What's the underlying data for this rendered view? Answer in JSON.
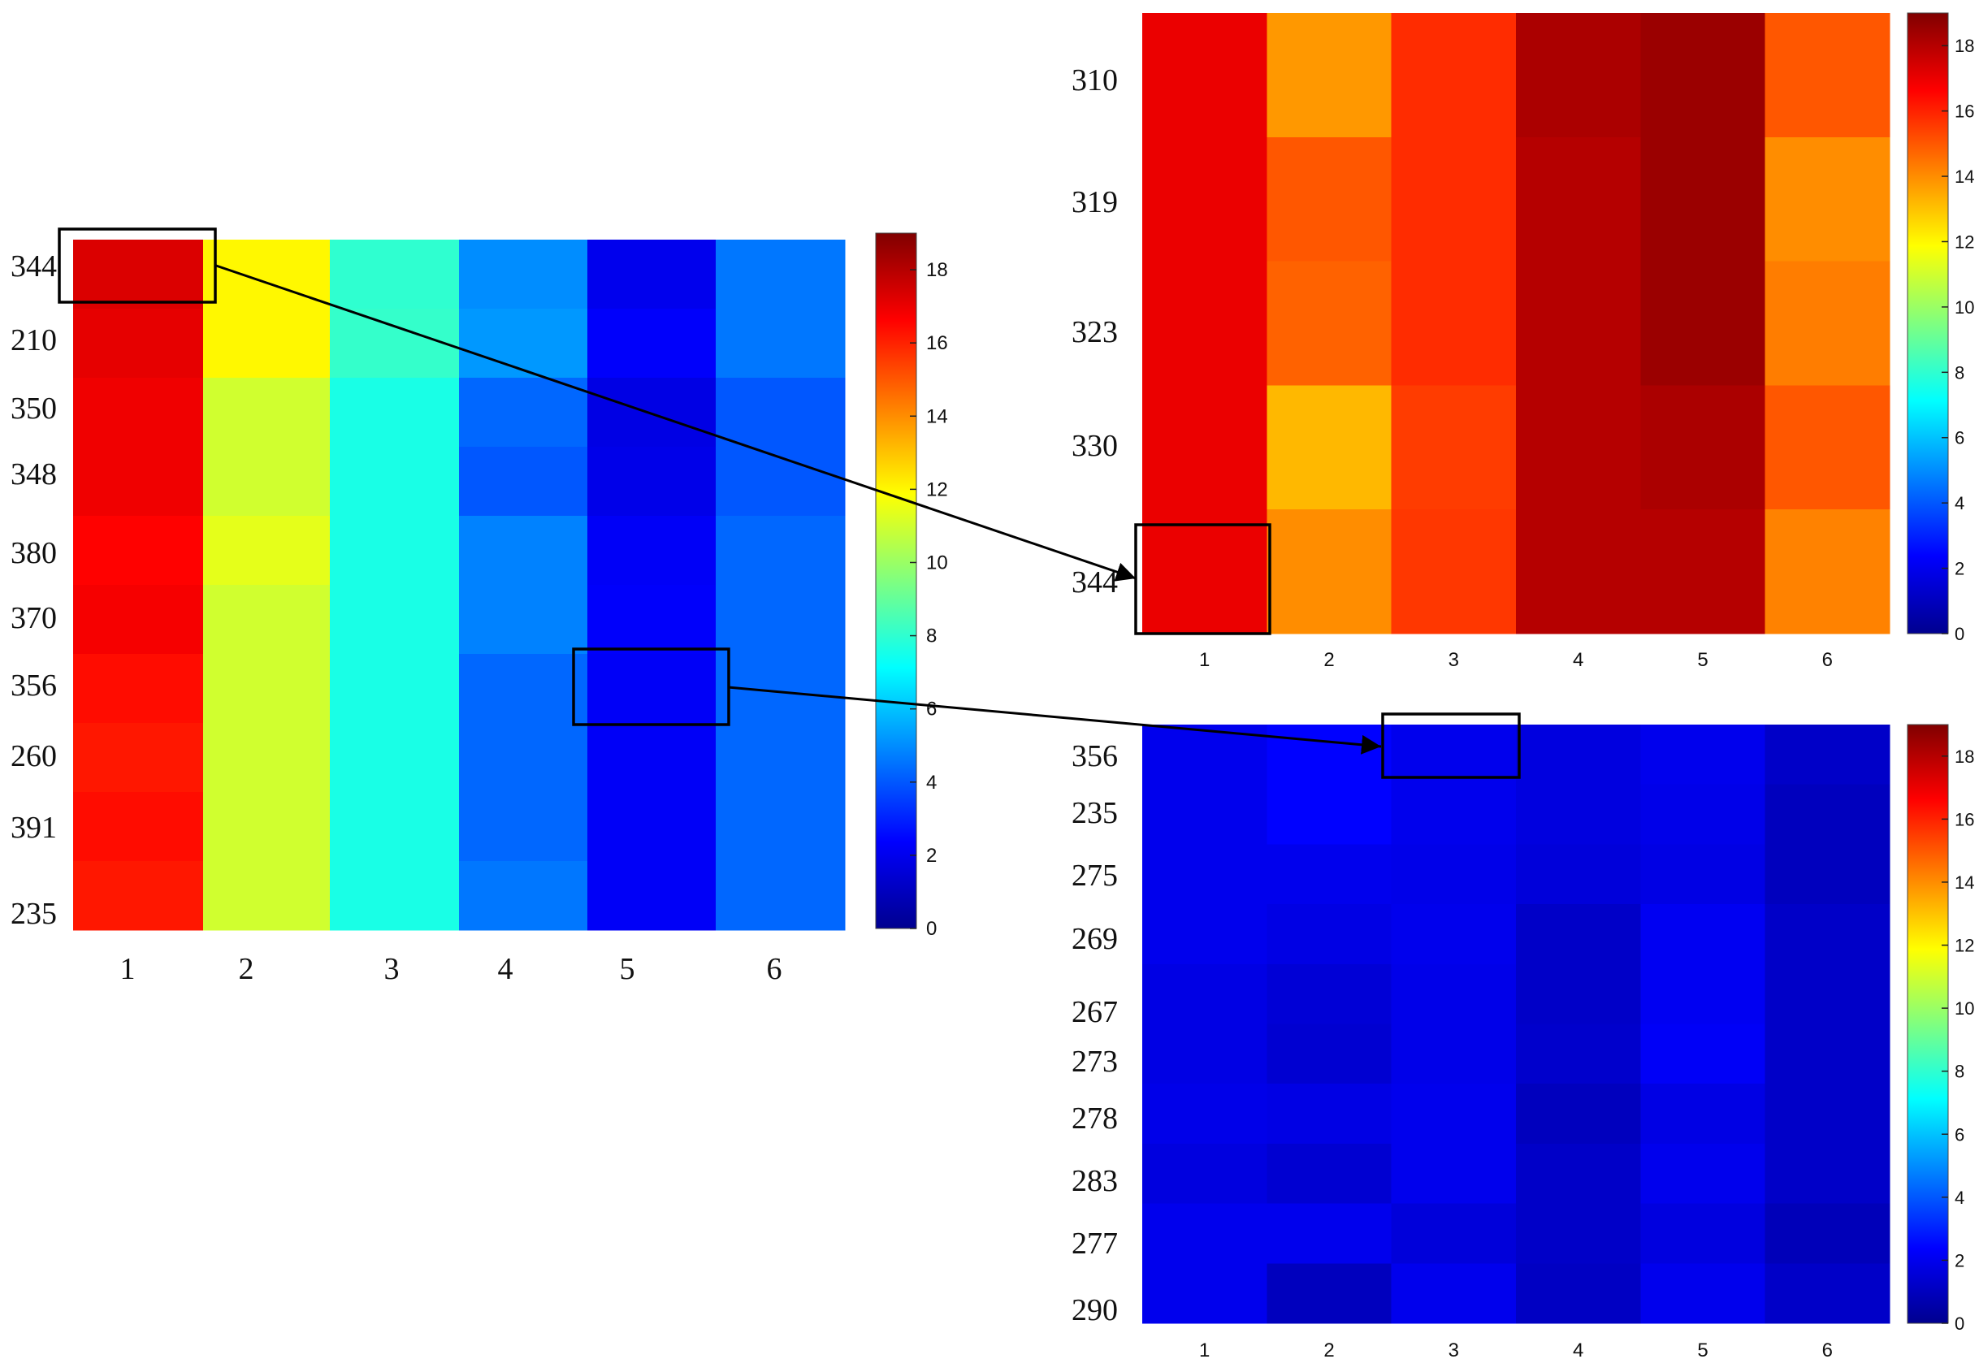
{
  "chart_data": [
    {
      "type": "heatmap",
      "name": "overview",
      "x": [
        "1",
        "2",
        "3",
        "4",
        "5",
        "6"
      ],
      "y": [
        "344",
        "210",
        "350",
        "348",
        "380",
        "370",
        "356",
        "260",
        "391",
        "235"
      ],
      "colorbar": {
        "min": 0,
        "max": 19,
        "ticks": [
          "0",
          "2",
          "4",
          "6",
          "8",
          "10",
          "12",
          "14",
          "16",
          "18"
        ],
        "colormap": "jet"
      },
      "values": [
        [
          17.3,
          12.0,
          8.0,
          5.0,
          2.0,
          4.6
        ],
        [
          17.1,
          12.0,
          8.1,
          5.2,
          2.3,
          4.6
        ],
        [
          16.9,
          11.0,
          7.6,
          4.3,
          1.8,
          4.0
        ],
        [
          16.9,
          11.0,
          7.6,
          4.0,
          1.9,
          4.0
        ],
        [
          16.6,
          11.4,
          7.6,
          4.8,
          2.2,
          4.3
        ],
        [
          16.8,
          11.0,
          7.6,
          4.8,
          2.3,
          4.3
        ],
        [
          16.4,
          11.0,
          7.6,
          4.3,
          2.2,
          4.3
        ],
        [
          16.2,
          11.0,
          7.6,
          4.3,
          2.2,
          4.3
        ],
        [
          16.4,
          11.0,
          7.6,
          4.3,
          2.2,
          4.3
        ],
        [
          16.2,
          11.0,
          7.6,
          4.6,
          2.2,
          4.3
        ]
      ],
      "highlights": [
        {
          "row": "344",
          "col": "1"
        },
        {
          "row": "356",
          "col": "5"
        }
      ]
    },
    {
      "type": "heatmap",
      "name": "zoom-high",
      "x": [
        "1",
        "2",
        "3",
        "4",
        "5",
        "6"
      ],
      "y": [
        "310",
        "319",
        "323",
        "330",
        "344"
      ],
      "colorbar": {
        "min": 0,
        "max": 19,
        "ticks": [
          "0",
          "2",
          "4",
          "6",
          "8",
          "10",
          "12",
          "14",
          "16",
          "18"
        ],
        "colormap": "jet"
      },
      "values": [
        [
          17.0,
          13.8,
          15.8,
          18.2,
          18.5,
          15.0
        ],
        [
          17.0,
          15.0,
          15.8,
          18.0,
          18.5,
          14.0
        ],
        [
          17.0,
          14.8,
          15.8,
          18.0,
          18.5,
          14.3
        ],
        [
          17.0,
          13.2,
          15.5,
          18.0,
          18.2,
          15.0
        ],
        [
          17.0,
          14.0,
          15.6,
          18.0,
          18.0,
          14.2
        ]
      ],
      "highlights": [
        {
          "row": "344",
          "col": "1"
        }
      ]
    },
    {
      "type": "heatmap",
      "name": "zoom-low",
      "x": [
        "1",
        "2",
        "3",
        "4",
        "5",
        "6"
      ],
      "y": [
        "356",
        "235",
        "275",
        "269",
        "267",
        "273",
        "278",
        "283",
        "277",
        "290"
      ],
      "colorbar": {
        "min": 0,
        "max": 19,
        "ticks": [
          "0",
          "2",
          "4",
          "6",
          "8",
          "10",
          "12",
          "14",
          "16",
          "18"
        ],
        "colormap": "jet"
      },
      "values": [
        [
          2.0,
          2.4,
          2.0,
          1.7,
          2.0,
          1.2
        ],
        [
          2.0,
          2.4,
          2.0,
          1.7,
          1.9,
          1.0
        ],
        [
          2.0,
          2.0,
          1.9,
          1.6,
          1.8,
          1.0
        ],
        [
          2.0,
          1.8,
          2.0,
          1.2,
          2.1,
          1.2
        ],
        [
          1.8,
          1.5,
          1.9,
          1.2,
          2.1,
          1.2
        ],
        [
          1.8,
          1.4,
          1.9,
          1.3,
          2.2,
          1.2
        ],
        [
          1.9,
          1.8,
          2.0,
          1.0,
          1.8,
          1.2
        ],
        [
          1.7,
          1.4,
          2.0,
          1.2,
          2.0,
          1.2
        ],
        [
          2.0,
          2.0,
          1.6,
          1.2,
          1.7,
          0.9
        ],
        [
          2.0,
          1.0,
          2.0,
          1.1,
          2.0,
          1.2
        ]
      ],
      "highlights": [
        {
          "row": "356",
          "col": "3"
        }
      ]
    }
  ]
}
